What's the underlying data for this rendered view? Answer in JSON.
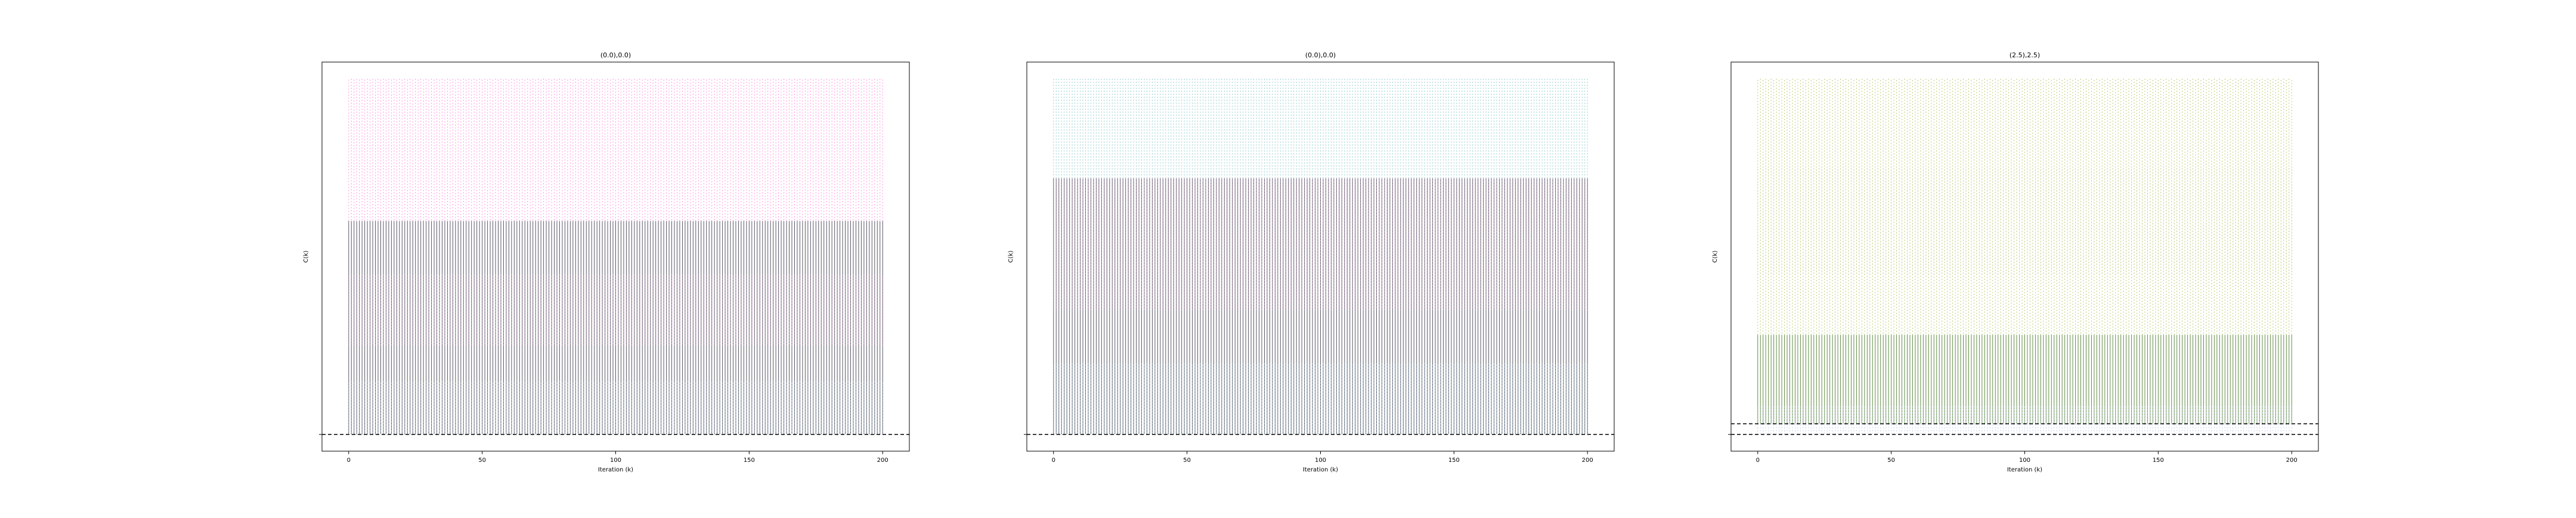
{
  "chart_data": [
    {
      "type": "line",
      "title": "(0.0),0.0)",
      "xlabel": "Iteration (k)",
      "ylabel": "C(k)",
      "xlim": [
        -10,
        210
      ],
      "ylim": [
        0,
        1
      ],
      "xticks": [
        0,
        50,
        100,
        150,
        200
      ],
      "grid": false,
      "legend": "none",
      "series": [
        {
          "color": "#ff66cc",
          "style": "dotted",
          "iterations": [
            0,
            200
          ],
          "band": [
            0.6,
            1.0
          ]
        },
        {
          "color": "#3a3a4a",
          "style": "solid",
          "iterations": [
            0,
            200
          ],
          "band": [
            0.0,
            0.6
          ]
        },
        {
          "color": "#cc88bb",
          "style": "dotted",
          "iterations": [
            0,
            200
          ],
          "band": [
            0.25,
            0.45
          ]
        },
        {
          "color": "#99bbcc",
          "style": "dotted",
          "iterations": [
            0,
            200
          ],
          "band": [
            0.0,
            0.15
          ]
        }
      ],
      "reference_lines": [
        {
          "y": 0.0,
          "style": "dashed",
          "color": "#000000"
        }
      ]
    },
    {
      "type": "line",
      "title": "(0.0),0.0)",
      "xlabel": "Iteration (k)",
      "ylabel": "C(k)",
      "xlim": [
        -10,
        210
      ],
      "ylim": [
        0,
        1
      ],
      "xticks": [
        0,
        50,
        100,
        150,
        200
      ],
      "grid": false,
      "legend": "none",
      "series": [
        {
          "color": "#66bbbb",
          "style": "dotted",
          "iterations": [
            0,
            200
          ],
          "band": [
            0.72,
            1.0
          ]
        },
        {
          "color": "#3a3a4a",
          "style": "solid",
          "iterations": [
            0,
            200
          ],
          "band": [
            0.0,
            0.72
          ]
        },
        {
          "color": "#cc88bb",
          "style": "dotted",
          "iterations": [
            0,
            200
          ],
          "band": [
            0.35,
            0.72
          ]
        },
        {
          "color": "#88bbcc",
          "style": "dotted",
          "iterations": [
            0,
            200
          ],
          "band": [
            0.0,
            0.2
          ]
        }
      ],
      "reference_lines": [
        {
          "y": 0.0,
          "style": "dashed",
          "color": "#000000"
        }
      ]
    },
    {
      "type": "line",
      "title": "(2.5),2.5)",
      "xlabel": "Iteration (k)",
      "ylabel": "C(k)",
      "xlim": [
        -10,
        210
      ],
      "ylim": [
        0,
        1
      ],
      "xticks": [
        0,
        50,
        100,
        150,
        200
      ],
      "grid": false,
      "legend": "none",
      "series": [
        {
          "color": "#99bb33",
          "style": "dotted",
          "iterations": [
            0,
            200
          ],
          "band": [
            0.28,
            1.0
          ]
        },
        {
          "color": "#447722",
          "style": "solid",
          "iterations": [
            0,
            200
          ],
          "band": [
            0.03,
            0.28
          ]
        },
        {
          "color": "#ccddaa",
          "style": "dotted",
          "iterations": [
            0,
            200
          ],
          "band": [
            0.45,
            0.75
          ]
        },
        {
          "color": "#aabbdd",
          "style": "dotted",
          "iterations": [
            0,
            200
          ],
          "band": [
            0.0,
            0.08
          ]
        }
      ],
      "reference_lines": [
        {
          "y": 0.0,
          "style": "dashed",
          "color": "#000000"
        },
        {
          "y": 0.03,
          "style": "dashed",
          "color": "#000000"
        }
      ]
    }
  ]
}
